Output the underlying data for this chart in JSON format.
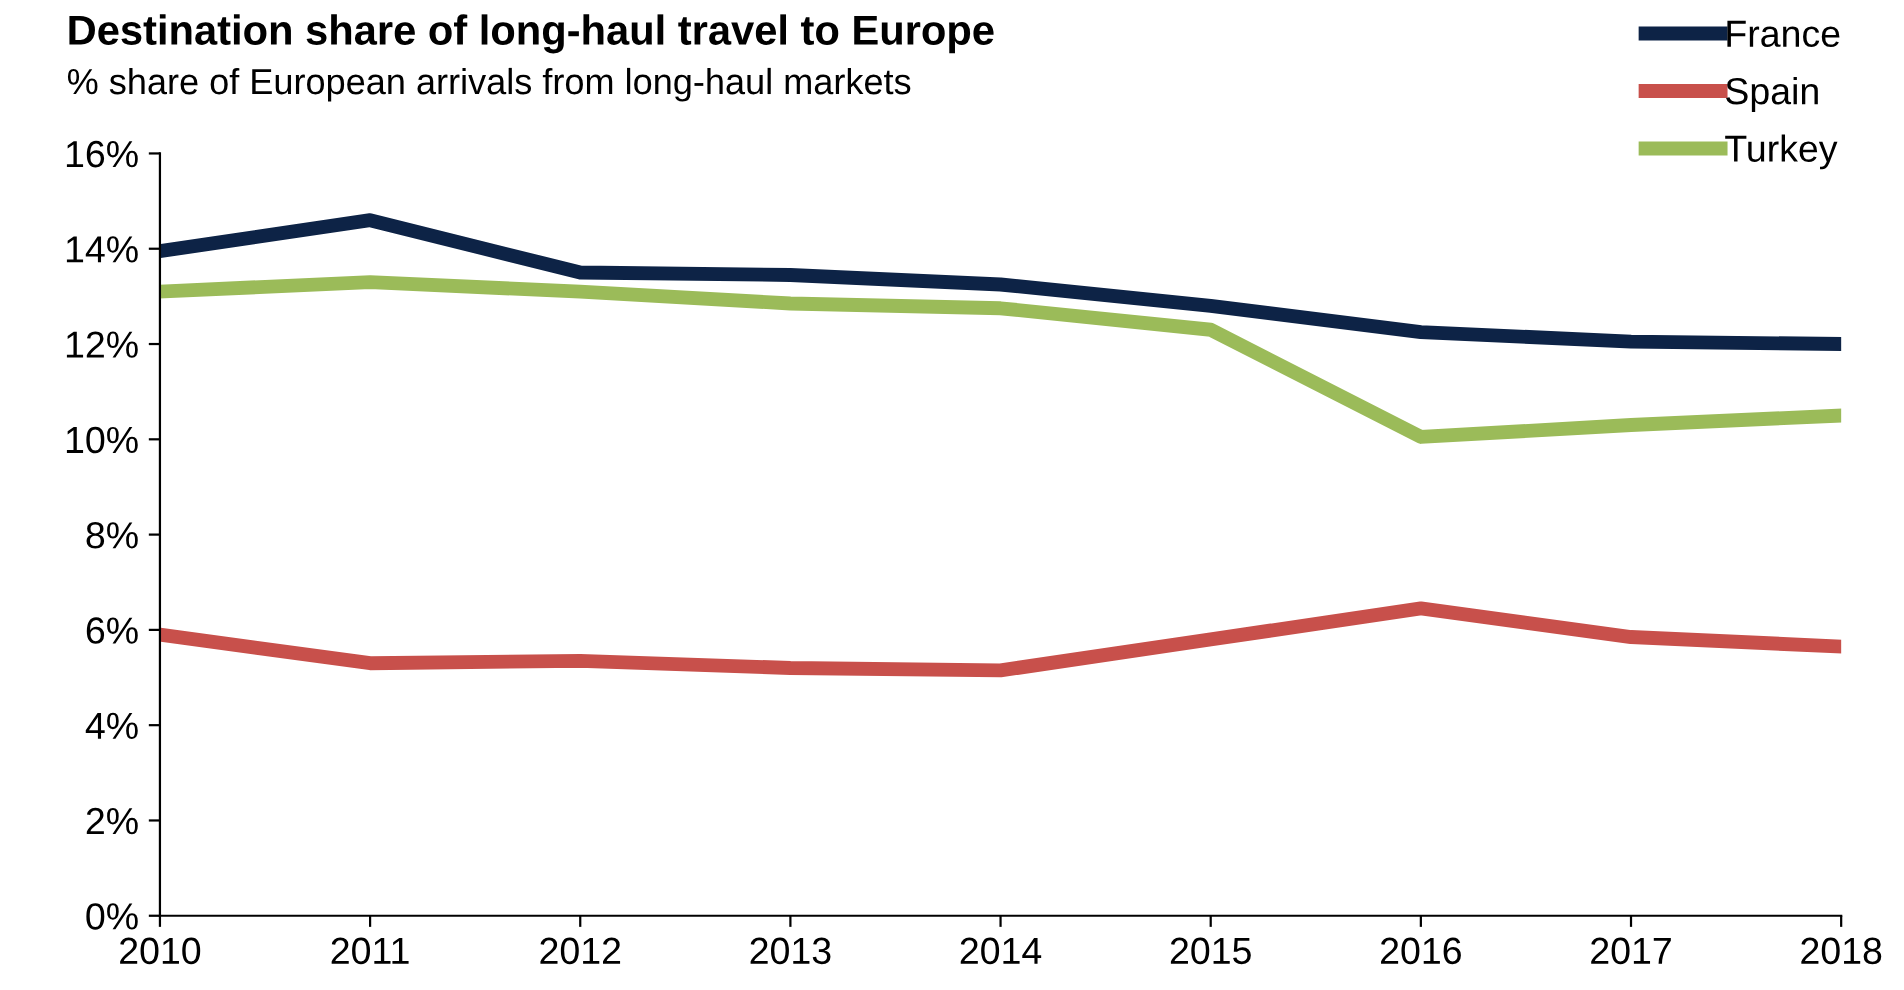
{
  "chart_data": {
    "type": "line",
    "title": "Destination share of long-haul travel to Europe",
    "subtitle": "% share of European arrivals from long-haul markets",
    "x": [
      2010,
      2011,
      2012,
      2013,
      2014,
      2015,
      2016,
      2017,
      2018
    ],
    "series": [
      {
        "name": "France",
        "color": "#0d2346",
        "values": [
          13.95,
          14.6,
          13.5,
          13.45,
          13.25,
          12.8,
          12.25,
          12.05,
          12.0
        ]
      },
      {
        "name": "Spain",
        "color": "#c8504b",
        "values": [
          5.9,
          5.3,
          5.35,
          5.2,
          5.15,
          5.8,
          6.45,
          5.85,
          5.65
        ]
      },
      {
        "name": "Turkey",
        "color": "#9bbb59",
        "values": [
          13.1,
          13.3,
          13.1,
          12.85,
          12.75,
          12.3,
          10.05,
          10.3,
          10.5
        ]
      }
    ],
    "xlim": [
      2010,
      2018
    ],
    "xticks": [
      2010,
      2011,
      2012,
      2013,
      2014,
      2015,
      2016,
      2017,
      2018
    ],
    "ylim": [
      0,
      16
    ],
    "yticks": [
      {
        "value": 0,
        "label": "0%"
      },
      {
        "value": 2,
        "label": "2%"
      },
      {
        "value": 4,
        "label": "4%"
      },
      {
        "value": 6,
        "label": "6%"
      },
      {
        "value": 8,
        "label": "8%"
      },
      {
        "value": 10,
        "label": "10%"
      },
      {
        "value": 12,
        "label": "12%"
      },
      {
        "value": 14,
        "label": "14%"
      },
      {
        "value": 16,
        "label": "16%"
      }
    ],
    "grid": false,
    "legend": "top right",
    "marker": "none",
    "line_style": "solid"
  }
}
